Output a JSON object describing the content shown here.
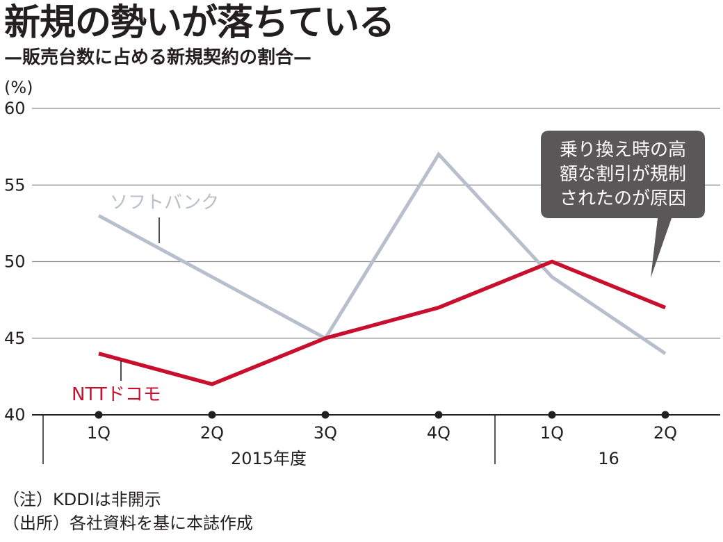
{
  "title": "新規の勢いが落ちている",
  "subtitle": "—販売台数に占める新規契約の割合—",
  "notes": [
    "（注）KDDIは非開示",
    "（出所）各社資料を基に本誌作成"
  ],
  "chart_data": {
    "type": "line",
    "y_unit": "(%)",
    "ylim": [
      40,
      60
    ],
    "yticks": [
      40,
      45,
      50,
      55,
      60
    ],
    "grid": true,
    "categories": [
      "1Q",
      "2Q",
      "3Q",
      "4Q",
      "1Q",
      "2Q"
    ],
    "category_groups": [
      {
        "label": "2015年度",
        "start": 0,
        "end": 3
      },
      {
        "label": "16",
        "start": 4,
        "end": 5
      }
    ],
    "series": [
      {
        "name": "ソフトバンク",
        "color": "#b8bfcc",
        "values": [
          53,
          null,
          45,
          57,
          49,
          44
        ]
      },
      {
        "name": "NTTドコモ",
        "color": "#c8102e",
        "values": [
          44,
          42,
          45,
          47,
          50,
          47
        ]
      }
    ],
    "annotation": {
      "lines": [
        "乗り換え時の高",
        "額な割引が規制",
        "されたのが原因"
      ],
      "target_series": 1,
      "target_index": 5
    }
  }
}
